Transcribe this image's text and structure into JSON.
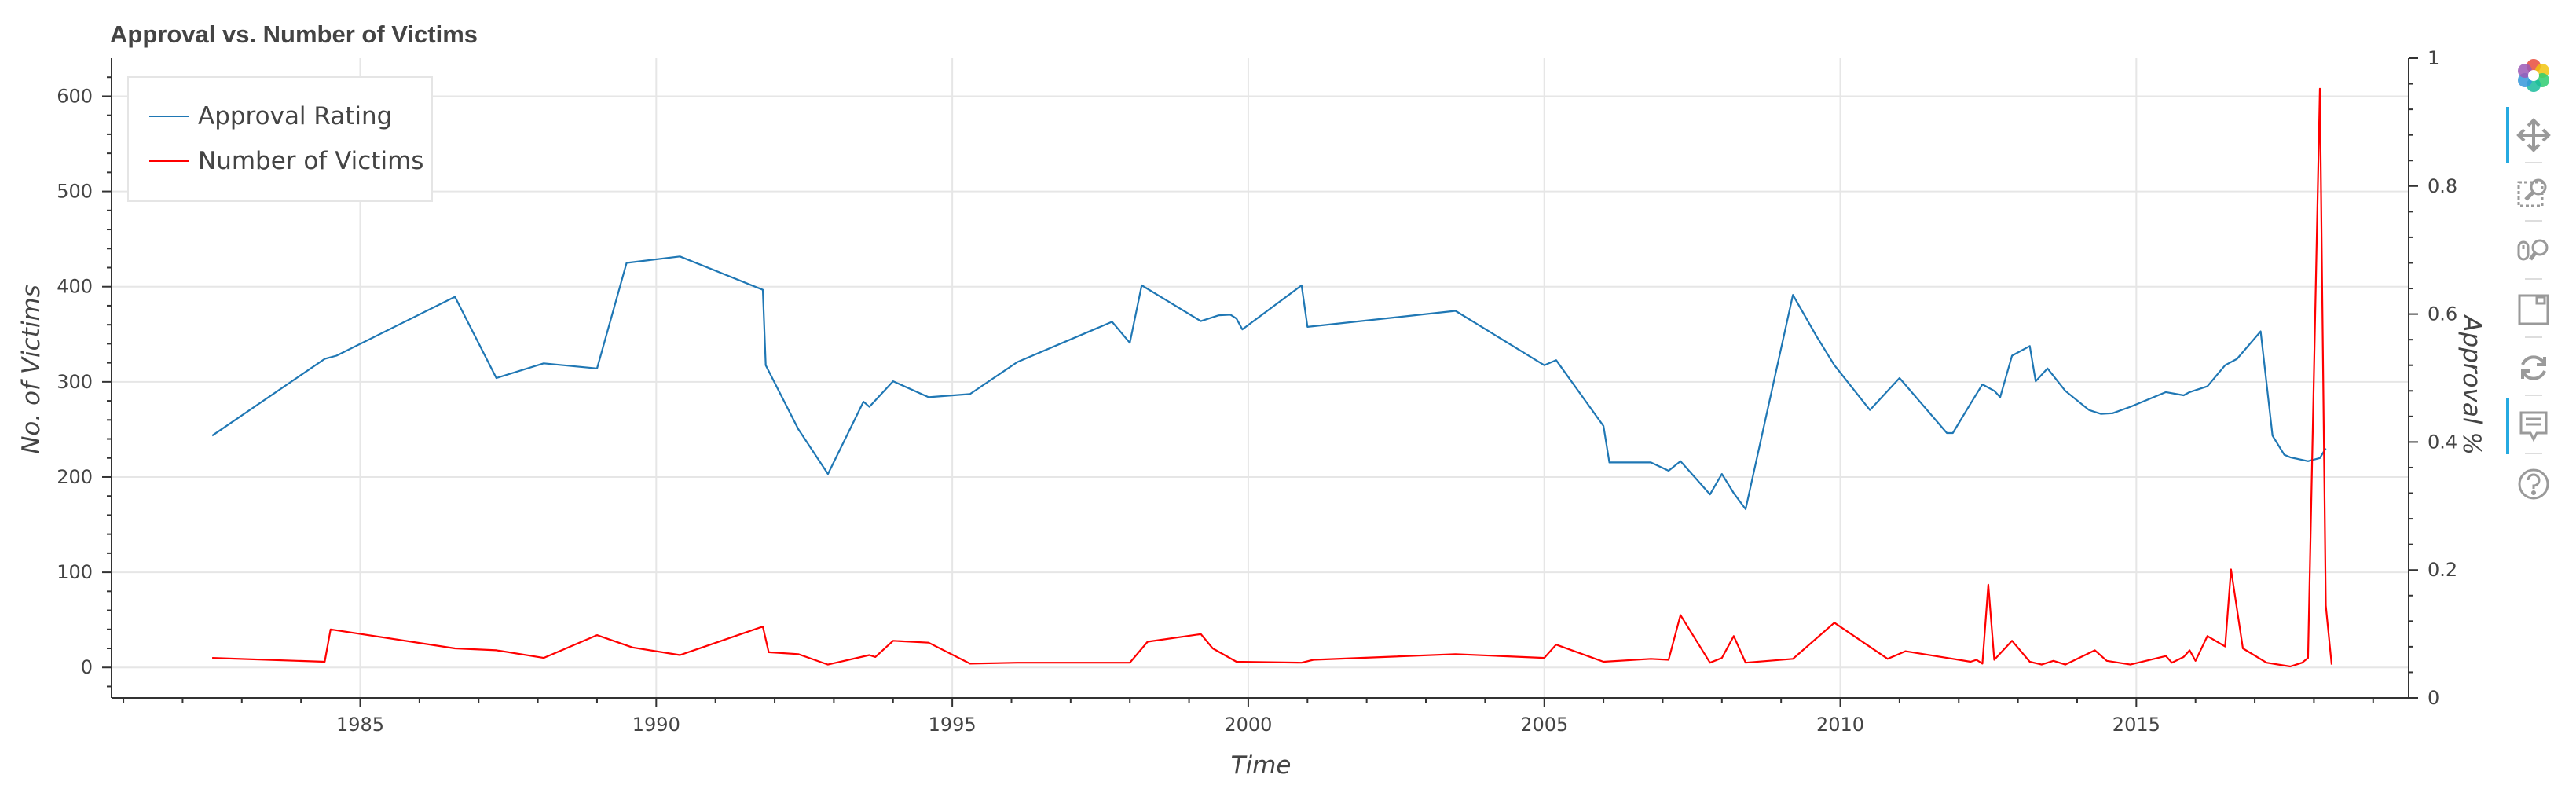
{
  "chart_data": {
    "type": "line",
    "title": "Approval vs. Number of Victims",
    "xlabel": "Time",
    "ylabel": "No. of Victims",
    "y2label": "Approval %",
    "xlim": [
      1980.8,
      2019.6
    ],
    "ylim": [
      -32,
      640
    ],
    "y2lim": [
      0,
      1
    ],
    "x_ticks": [
      1985,
      1990,
      1995,
      2000,
      2005,
      2010,
      2015
    ],
    "y_ticks": [
      0,
      100,
      200,
      300,
      400,
      500,
      600
    ],
    "y2_ticks": [
      0,
      0.2,
      0.4,
      0.6,
      0.8,
      1
    ],
    "y2_tick_labels": [
      "0",
      "0.2",
      "0.4",
      "0.6",
      "0.8",
      "1"
    ],
    "grid": true,
    "legend_position": "top-left",
    "series": [
      {
        "name": "Approval Rating",
        "axis": "right",
        "color": "#1f77b4",
        "x": [
          1982.5,
          1984.4,
          1984.6,
          1986.6,
          1987.3,
          1988.1,
          1989.0,
          1989.5,
          1990.4,
          1991.8,
          1991.85,
          1992.4,
          1992.9,
          1993.5,
          1993.6,
          1994.0,
          1994.6,
          1995.3,
          1996.1,
          1997.7,
          1998.0,
          1998.2,
          1999.2,
          1999.5,
          1999.7,
          1999.8,
          1999.9,
          2000.9,
          2001.0,
          2003.5,
          2005.0,
          2005.2,
          2006.0,
          2006.1,
          2006.8,
          2007.1,
          2007.3,
          2007.8,
          2008.0,
          2008.2,
          2008.4,
          2009.2,
          2009.6,
          2009.9,
          2010.5,
          2011.0,
          2011.8,
          2011.9,
          2012.2,
          2012.4,
          2012.6,
          2012.7,
          2012.9,
          2013.2,
          2013.3,
          2013.5,
          2013.8,
          2014.2,
          2014.4,
          2014.6,
          2014.9,
          2015.5,
          2015.8,
          2015.9,
          2016.2,
          2016.5,
          2016.7,
          2017.1,
          2017.3,
          2017.5,
          2017.6,
          2017.9,
          2018.1,
          2018.2
        ],
        "values": [
          0.41,
          0.53,
          0.535,
          0.627,
          0.5,
          0.523,
          0.515,
          0.68,
          0.69,
          0.638,
          0.52,
          0.42,
          0.35,
          0.463,
          0.455,
          0.495,
          0.47,
          0.475,
          0.525,
          0.588,
          0.555,
          0.645,
          0.589,
          0.598,
          0.599,
          0.593,
          0.576,
          0.645,
          0.58,
          0.605,
          0.52,
          0.528,
          0.425,
          0.368,
          0.368,
          0.355,
          0.37,
          0.318,
          0.35,
          0.32,
          0.295,
          0.63,
          0.565,
          0.52,
          0.45,
          0.5,
          0.414,
          0.414,
          0.46,
          0.49,
          0.48,
          0.47,
          0.535,
          0.55,
          0.495,
          0.515,
          0.48,
          0.45,
          0.444,
          0.445,
          0.455,
          0.478,
          0.473,
          0.478,
          0.487,
          0.52,
          0.53,
          0.573,
          0.41,
          0.38,
          0.376,
          0.37,
          0.375,
          0.39
        ]
      },
      {
        "name": "Number of Victims",
        "axis": "left",
        "color": "#ff0000",
        "x": [
          1982.5,
          1984.4,
          1984.5,
          1986.6,
          1987.3,
          1988.1,
          1989.0,
          1989.6,
          1990.4,
          1991.8,
          1991.9,
          1992.4,
          1992.9,
          1993.6,
          1993.7,
          1994.0,
          1994.6,
          1995.3,
          1996.1,
          1997.7,
          1998.0,
          1998.3,
          1999.2,
          1999.4,
          1999.8,
          2000.9,
          2001.1,
          2003.5,
          2005.0,
          2005.2,
          2006.0,
          2006.8,
          2007.1,
          2007.3,
          2007.8,
          2008.0,
          2008.2,
          2008.4,
          2009.2,
          2009.9,
          2010.8,
          2011.1,
          2011.8,
          2012.0,
          2012.2,
          2012.3,
          2012.4,
          2012.5,
          2012.6,
          2012.9,
          2013.2,
          2013.4,
          2013.6,
          2013.8,
          2014.3,
          2014.5,
          2014.9,
          2015.5,
          2015.6,
          2015.8,
          2015.9,
          2016.0,
          2016.2,
          2016.5,
          2016.6,
          2016.8,
          2017.2,
          2017.6,
          2017.8,
          2017.9,
          2018.1,
          2018.2,
          2018.3
        ],
        "values": [
          10,
          6,
          40,
          20,
          18,
          10,
          34,
          21,
          13,
          43,
          16,
          14,
          3,
          13,
          11,
          28,
          26,
          4,
          5,
          5,
          5,
          27,
          35,
          20,
          6,
          5,
          8,
          14,
          10,
          24,
          6,
          9,
          8,
          55,
          5,
          10,
          33,
          5,
          9,
          47,
          9,
          17,
          10,
          8,
          6,
          8,
          4,
          87,
          8,
          28,
          6,
          3,
          7,
          3,
          18,
          7,
          3,
          12,
          5,
          11,
          18,
          7,
          33,
          22,
          103,
          20,
          5,
          1,
          5,
          10,
          608,
          65,
          3
        ]
      }
    ]
  },
  "toolbar": {
    "logo_icon": "bokeh-logo-icon",
    "pan_icon": "pan-move-icon",
    "box_zoom_icon": "box-zoom-icon",
    "wheel_zoom_icon": "wheel-zoom-icon",
    "save_icon": "save-icon",
    "reset_icon": "reset-icon",
    "hover_icon": "hover-tooltip-icon",
    "help_icon": "help-icon"
  }
}
